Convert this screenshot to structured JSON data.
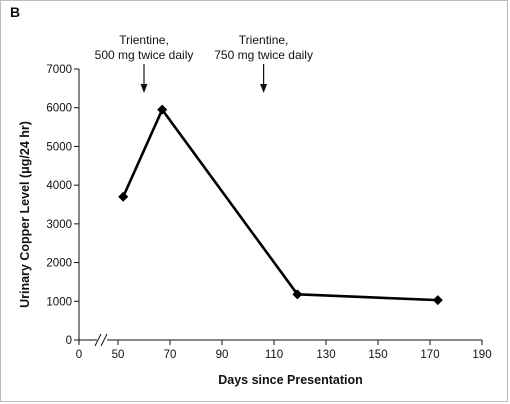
{
  "panel_label": "B",
  "chart_data": {
    "type": "line",
    "xlabel": "Days since Presentation",
    "ylabel": "Urinary Copper Level (μg/24 hr)",
    "xlim": [
      0,
      190
    ],
    "ylim": [
      0,
      7000
    ],
    "x_ticks": [
      0,
      50,
      70,
      90,
      110,
      130,
      150,
      170,
      190
    ],
    "y_ticks": [
      0,
      1000,
      2000,
      3000,
      4000,
      5000,
      6000,
      7000
    ],
    "axis_break": true,
    "grid": false,
    "series": [
      {
        "x": [
          52,
          67,
          119,
          173
        ],
        "y": [
          3700,
          5950,
          1180,
          1030
        ],
        "marker": "diamond",
        "color": "#000000"
      }
    ],
    "annotations": [
      {
        "lines": [
          "Trientine,",
          "500 mg twice daily"
        ],
        "x": 60
      },
      {
        "lines": [
          "Trientine,",
          "750 mg twice daily"
        ],
        "x": 106
      }
    ]
  }
}
